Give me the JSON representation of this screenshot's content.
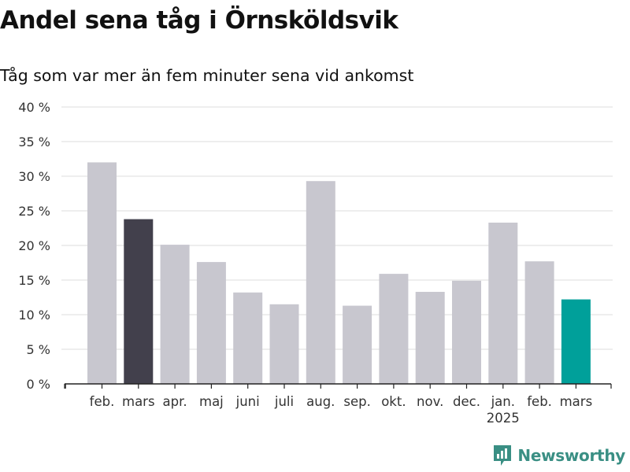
{
  "header": {
    "title": "Andel sena tåg i Örnsköldsvik",
    "subtitle": "Tåg som var mer än fem minuter sena vid ankomst"
  },
  "brand": {
    "name": "Newsworthy",
    "icon": "newsworthy-logo-icon",
    "color": "#3a8f84"
  },
  "chart_data": {
    "type": "bar",
    "categories": [
      "feb.",
      "mars",
      "apr.",
      "maj",
      "juni",
      "juli",
      "aug.",
      "sep.",
      "okt.",
      "nov.",
      "dec.",
      "jan.",
      "feb.",
      "mars"
    ],
    "category_sublabels": [
      "",
      "",
      "",
      "",
      "",
      "",
      "",
      "",
      "",
      "",
      "",
      "2025",
      "",
      ""
    ],
    "values": [
      32,
      23.8,
      20.1,
      17.6,
      13.2,
      11.5,
      29.3,
      11.3,
      15.9,
      13.3,
      14.9,
      23.3,
      17.7,
      12.2
    ],
    "bar_colors": [
      "#c8c7cf",
      "#42404c",
      "#c8c7cf",
      "#c8c7cf",
      "#c8c7cf",
      "#c8c7cf",
      "#c8c7cf",
      "#c8c7cf",
      "#c8c7cf",
      "#c8c7cf",
      "#c8c7cf",
      "#c8c7cf",
      "#c8c7cf",
      "#00a09a"
    ],
    "ylim": [
      0,
      40
    ],
    "yticks": [
      0,
      5,
      10,
      15,
      20,
      25,
      30,
      35,
      40
    ],
    "ytick_labels": [
      "0 %",
      "5 %",
      "10 %",
      "15 %",
      "20 %",
      "25 %",
      "30 %",
      "35 %",
      "40 %"
    ],
    "grid": true,
    "title": "Andel sena tåg i Örnsköldsvik",
    "xlabel": "",
    "ylabel": ""
  }
}
